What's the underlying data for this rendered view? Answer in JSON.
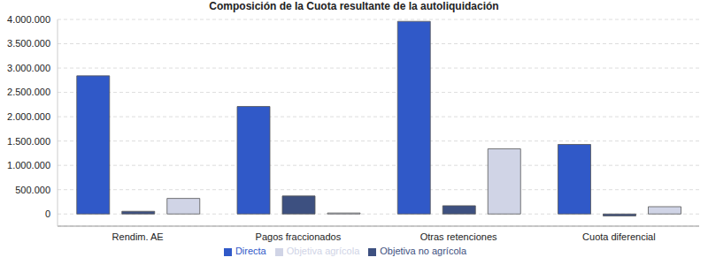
{
  "chart_data": {
    "type": "bar",
    "title": "Composición de la Cuota resultante de la autoliquidación",
    "categories": [
      "Rendim. AE",
      "Pagos fraccionados",
      "Otras retenciones",
      "Cuota diferencial"
    ],
    "series": [
      {
        "name": "Directa",
        "color": "#3059c8",
        "values": [
          2840000,
          2210000,
          3960000,
          1430000
        ]
      },
      {
        "name": "Objetiva no agrícola",
        "color": "#3d5080",
        "values": [
          55000,
          370000,
          170000,
          -40000
        ]
      },
      {
        "name": "Objetiva agrícola",
        "color": "#d0d4e6",
        "values": [
          320000,
          20000,
          1340000,
          150000
        ]
      }
    ],
    "ylim": [
      -250000,
      4000000
    ],
    "yticks": [
      {
        "value": 0,
        "label": "0"
      },
      {
        "value": 500000,
        "label": "500.000"
      },
      {
        "value": 1000000,
        "label": "1.000.000"
      },
      {
        "value": 1500000,
        "label": "1.500.000"
      },
      {
        "value": 2000000,
        "label": "2.000.000"
      },
      {
        "value": 2500000,
        "label": "2.500.000"
      },
      {
        "value": 3000000,
        "label": "3.000.000"
      },
      {
        "value": 3500000,
        "label": "3.500.000"
      },
      {
        "value": 4000000,
        "label": "4.000.000"
      }
    ],
    "grid": true,
    "legend": "bottom"
  }
}
